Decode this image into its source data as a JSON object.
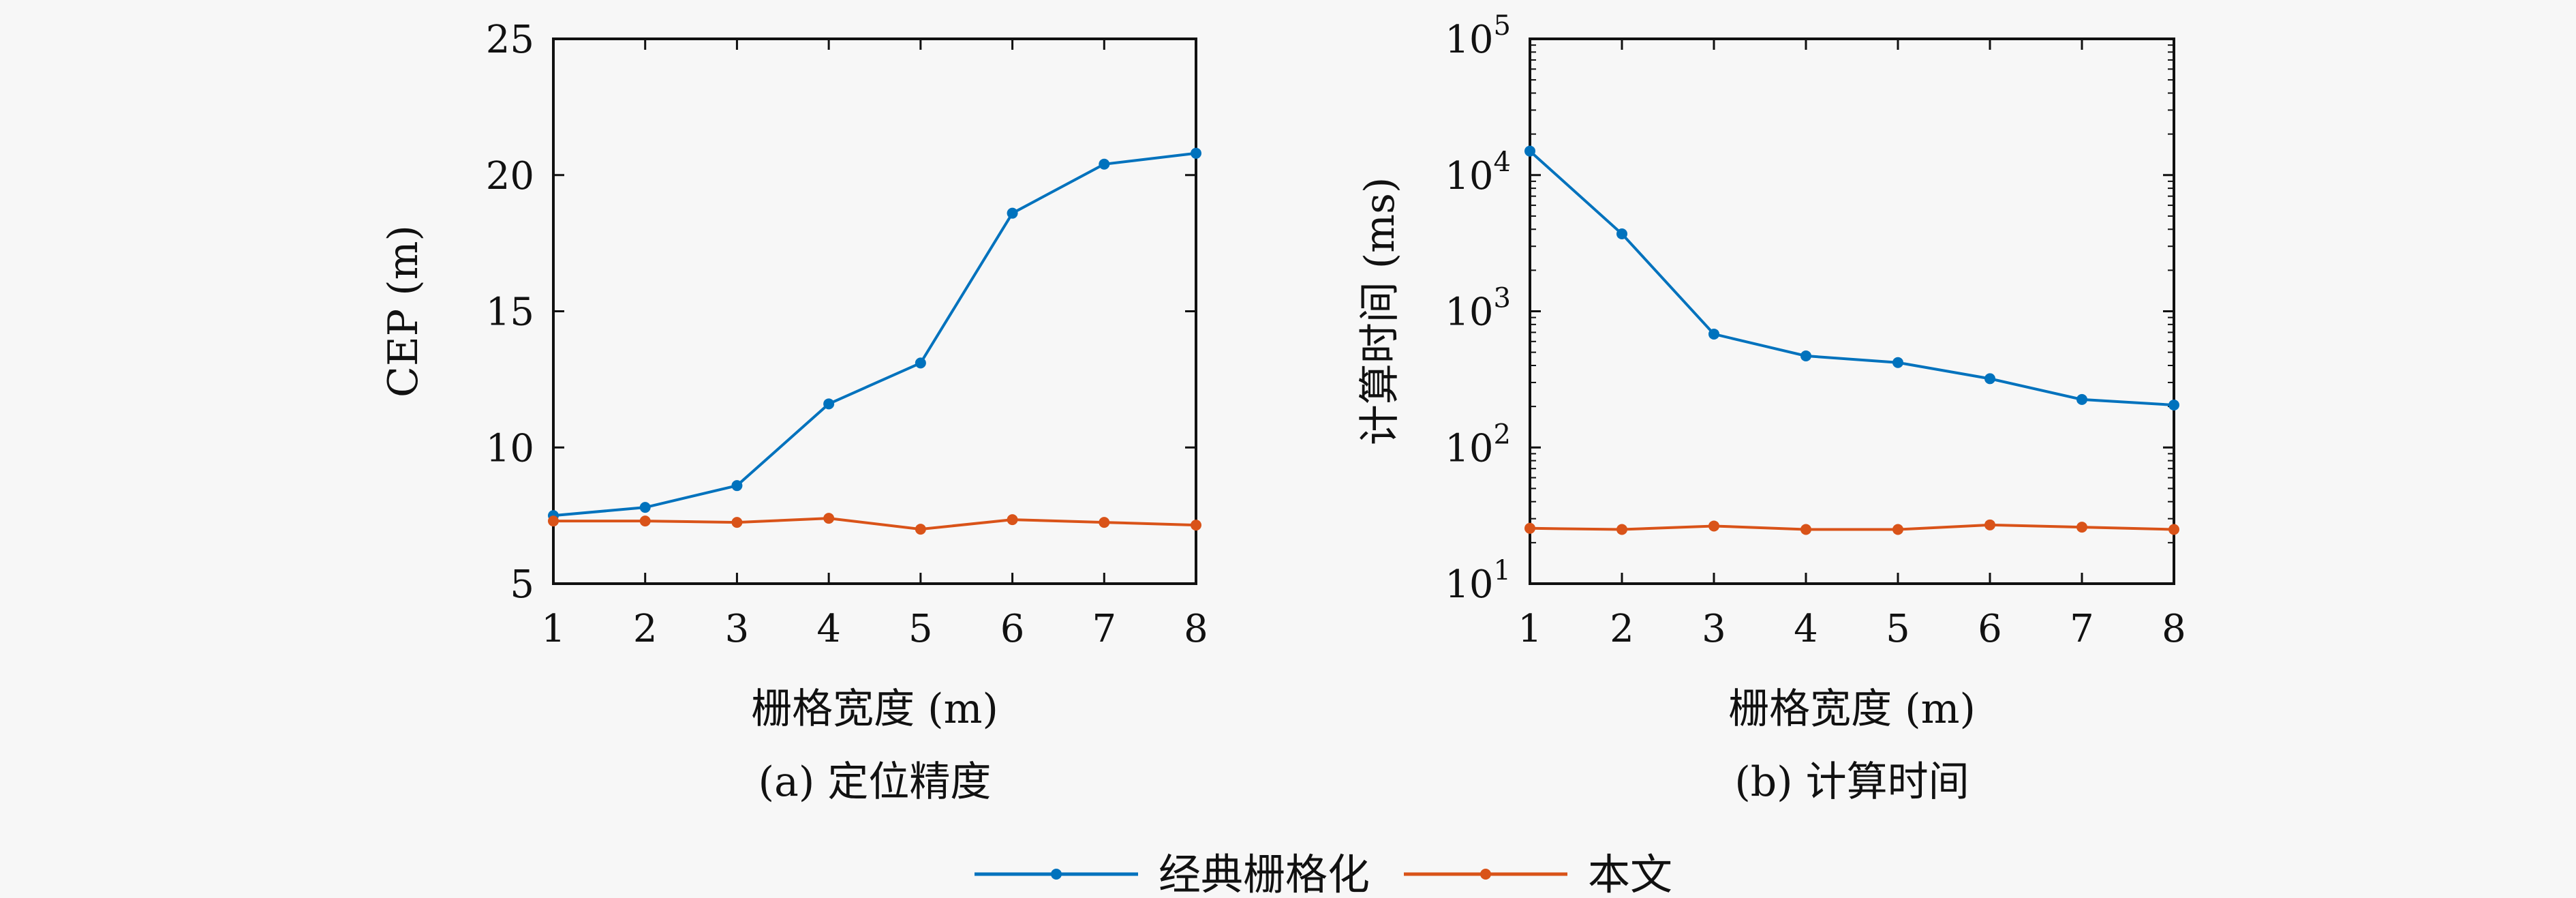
{
  "chart_data": [
    {
      "type": "line",
      "caption": "(a) 定位精度",
      "xlabel": "栅格宽度 (m)",
      "ylabel": "CEP (m)",
      "x": [
        1,
        2,
        3,
        4,
        5,
        6,
        7,
        8
      ],
      "xlim": [
        1,
        8
      ],
      "ylim": [
        5,
        25
      ],
      "yticks": [
        5,
        10,
        15,
        20,
        25
      ],
      "yscale": "linear",
      "grid": false,
      "series": [
        {
          "name": "经典栅格化",
          "color": "#0072BD",
          "values": [
            7.5,
            7.8,
            8.6,
            11.6,
            13.1,
            18.6,
            20.4,
            20.8
          ]
        },
        {
          "name": "本文",
          "color": "#D95319",
          "values": [
            7.3,
            7.3,
            7.25,
            7.4,
            7.0,
            7.35,
            7.25,
            7.15
          ]
        }
      ]
    },
    {
      "type": "line",
      "caption": "(b) 计算时间",
      "xlabel": "栅格宽度 (m)",
      "ylabel": "计算时间 (ms)",
      "x": [
        1,
        2,
        3,
        4,
        5,
        6,
        7,
        8
      ],
      "xlim": [
        1,
        8
      ],
      "ylim": [
        10,
        100000
      ],
      "yticks": [
        10,
        100,
        1000,
        10000,
        100000
      ],
      "ytick_exponents": [
        "1",
        "2",
        "3",
        "4",
        "5"
      ],
      "yscale": "log",
      "grid": false,
      "series": [
        {
          "name": "经典栅格化",
          "color": "#0072BD",
          "values": [
            15000,
            3700,
            680,
            470,
            420,
            320,
            225,
            205
          ]
        },
        {
          "name": "本文",
          "color": "#D95319",
          "values": [
            25.5,
            25,
            26.5,
            25,
            25,
            27,
            26,
            25
          ]
        }
      ]
    }
  ],
  "legend": {
    "placement": "bottom-center",
    "items": [
      {
        "label": "经典栅格化",
        "color": "#0072BD"
      },
      {
        "label": "本文",
        "color": "#D95319"
      }
    ]
  }
}
